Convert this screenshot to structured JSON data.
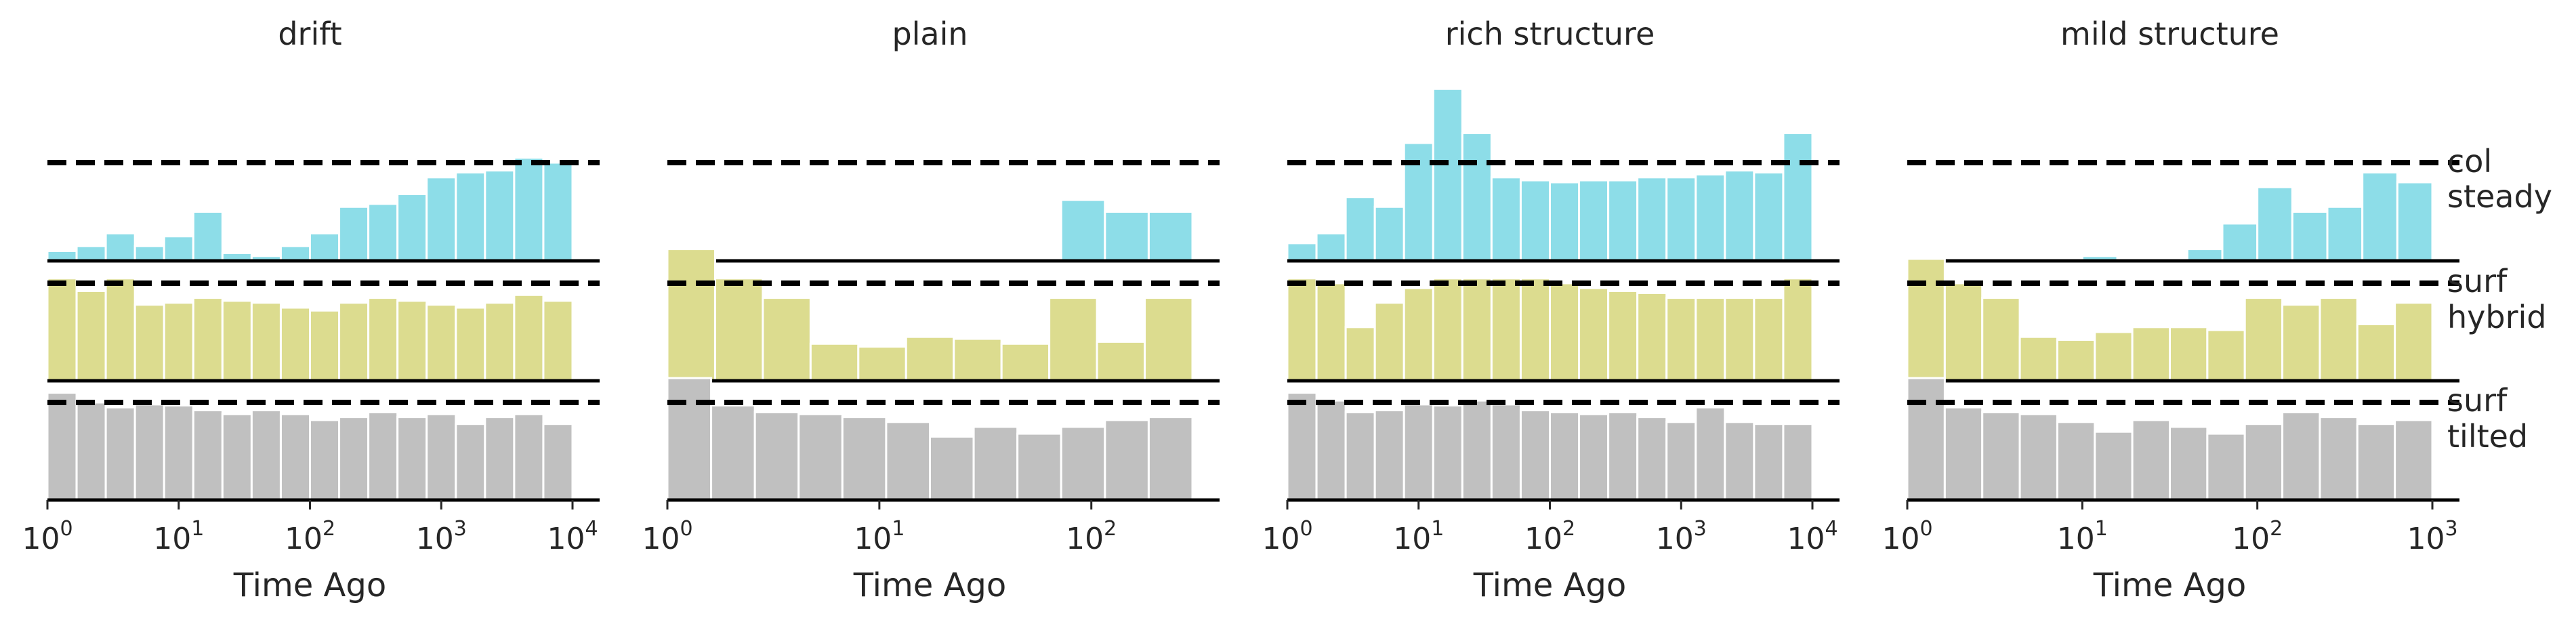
{
  "colors": {
    "col": "#8ddde8",
    "surf_hybrid": "#dcdc8f",
    "surf_tilted": "#c0c0c0",
    "edge": "#ffffff"
  },
  "row_labels": [
    {
      "top": "col",
      "bottom": "steady"
    },
    {
      "top": "surf",
      "bottom": "hybrid"
    },
    {
      "top": "surf",
      "bottom": "tilted"
    }
  ],
  "chart_data": [
    {
      "type": "histogram",
      "title": "drift",
      "xlabel": "Time Ago",
      "xscale": "log",
      "xlim": [
        1,
        10000
      ],
      "xticks": [
        {
          "base": "10",
          "exp": "0",
          "value": 1
        },
        {
          "base": "10",
          "exp": "1",
          "value": 10
        },
        {
          "base": "10",
          "exp": "2",
          "value": 100
        },
        {
          "base": "10",
          "exp": "3",
          "value": 1000
        },
        {
          "base": "10",
          "exp": "4",
          "value": 10000
        }
      ],
      "series": [
        {
          "name": "col steady",
          "reference": 1.0,
          "values": [
            0.1,
            0.15,
            0.28,
            0.15,
            0.25,
            0.5,
            0.08,
            0.05,
            0.15,
            0.28,
            0.55,
            0.58,
            0.68,
            0.85,
            0.9,
            0.92,
            1.05,
            1.0
          ]
        },
        {
          "name": "surf hybrid",
          "reference": 1.0,
          "values": [
            1.05,
            0.92,
            1.05,
            0.78,
            0.8,
            0.85,
            0.82,
            0.8,
            0.75,
            0.72,
            0.8,
            0.85,
            0.82,
            0.78,
            0.75,
            0.8,
            0.88,
            0.82
          ]
        },
        {
          "name": "surf tilted",
          "reference": 1.0,
          "values": [
            1.1,
            1.0,
            0.95,
            0.98,
            0.97,
            0.92,
            0.88,
            0.92,
            0.88,
            0.82,
            0.85,
            0.9,
            0.85,
            0.88,
            0.78,
            0.85,
            0.88,
            0.78
          ]
        }
      ]
    },
    {
      "type": "histogram",
      "title": "plain",
      "xlabel": "Time Ago",
      "xscale": "log",
      "xlim": [
        1,
        300
      ],
      "xticks": [
        {
          "base": "10",
          "exp": "0",
          "value": 1
        },
        {
          "base": "10",
          "exp": "1",
          "value": 10
        },
        {
          "base": "10",
          "exp": "2",
          "value": 100
        }
      ],
      "series": [
        {
          "name": "col steady",
          "reference": 1.0,
          "values": [
            0,
            0,
            0,
            0,
            0,
            0,
            0,
            0,
            0,
            0.62,
            0.5,
            0.5
          ]
        },
        {
          "name": "surf hybrid",
          "reference": 1.0,
          "values": [
            1.35,
            1.05,
            0.85,
            0.38,
            0.35,
            0.45,
            0.43,
            0.38,
            0.85,
            0.4,
            0.85
          ]
        },
        {
          "name": "surf tilted",
          "reference": 1.0,
          "values": [
            1.25,
            0.97,
            0.9,
            0.88,
            0.85,
            0.8,
            0.65,
            0.75,
            0.68,
            0.75,
            0.82,
            0.85
          ]
        }
      ]
    },
    {
      "type": "histogram",
      "title": "rich structure",
      "xlabel": "Time Ago",
      "xscale": "log",
      "xlim": [
        1,
        10000
      ],
      "xticks": [
        {
          "base": "10",
          "exp": "0",
          "value": 1
        },
        {
          "base": "10",
          "exp": "1",
          "value": 10
        },
        {
          "base": "10",
          "exp": "2",
          "value": 100
        },
        {
          "base": "10",
          "exp": "3",
          "value": 1000
        },
        {
          "base": "10",
          "exp": "4",
          "value": 10000
        }
      ],
      "series": [
        {
          "name": "col steady",
          "reference": 1.0,
          "values": [
            0.18,
            0.28,
            0.65,
            0.55,
            1.2,
            1.75,
            1.3,
            0.85,
            0.82,
            0.8,
            0.82,
            0.82,
            0.85,
            0.85,
            0.88,
            0.92,
            0.9,
            1.3
          ]
        },
        {
          "name": "surf hybrid",
          "reference": 1.0,
          "values": [
            1.05,
            1.0,
            0.55,
            0.8,
            0.95,
            1.05,
            1.05,
            1.05,
            1.05,
            1.0,
            0.95,
            0.92,
            0.9,
            0.85,
            0.85,
            0.85,
            0.85,
            1.05
          ]
        },
        {
          "name": "surf tilted",
          "reference": 1.0,
          "values": [
            1.1,
            1.02,
            0.9,
            0.92,
            0.98,
            0.97,
            1.02,
            0.98,
            0.92,
            0.9,
            0.88,
            0.9,
            0.85,
            0.8,
            0.95,
            0.8,
            0.78,
            0.78
          ]
        }
      ]
    },
    {
      "type": "histogram",
      "title": "mild structure",
      "xlabel": "Time Ago",
      "xscale": "log",
      "xlim": [
        1,
        1000
      ],
      "xticks": [
        {
          "base": "10",
          "exp": "0",
          "value": 1
        },
        {
          "base": "10",
          "exp": "1",
          "value": 10
        },
        {
          "base": "10",
          "exp": "2",
          "value": 100
        },
        {
          "base": "10",
          "exp": "3",
          "value": 1000
        }
      ],
      "series": [
        {
          "name": "col steady",
          "reference": 1.0,
          "values": [
            0,
            0,
            0,
            0,
            0,
            0.05,
            0,
            0,
            0.12,
            0.38,
            0.75,
            0.5,
            0.55,
            0.9,
            0.8
          ]
        },
        {
          "name": "surf hybrid",
          "reference": 1.0,
          "values": [
            1.25,
            1.0,
            0.85,
            0.45,
            0.42,
            0.5,
            0.55,
            0.55,
            0.52,
            0.85,
            0.78,
            0.85,
            0.58,
            0.8
          ]
        },
        {
          "name": "surf tilted",
          "reference": 1.0,
          "values": [
            1.25,
            0.95,
            0.9,
            0.88,
            0.8,
            0.7,
            0.82,
            0.75,
            0.68,
            0.78,
            0.9,
            0.85,
            0.78,
            0.82
          ]
        }
      ]
    }
  ]
}
